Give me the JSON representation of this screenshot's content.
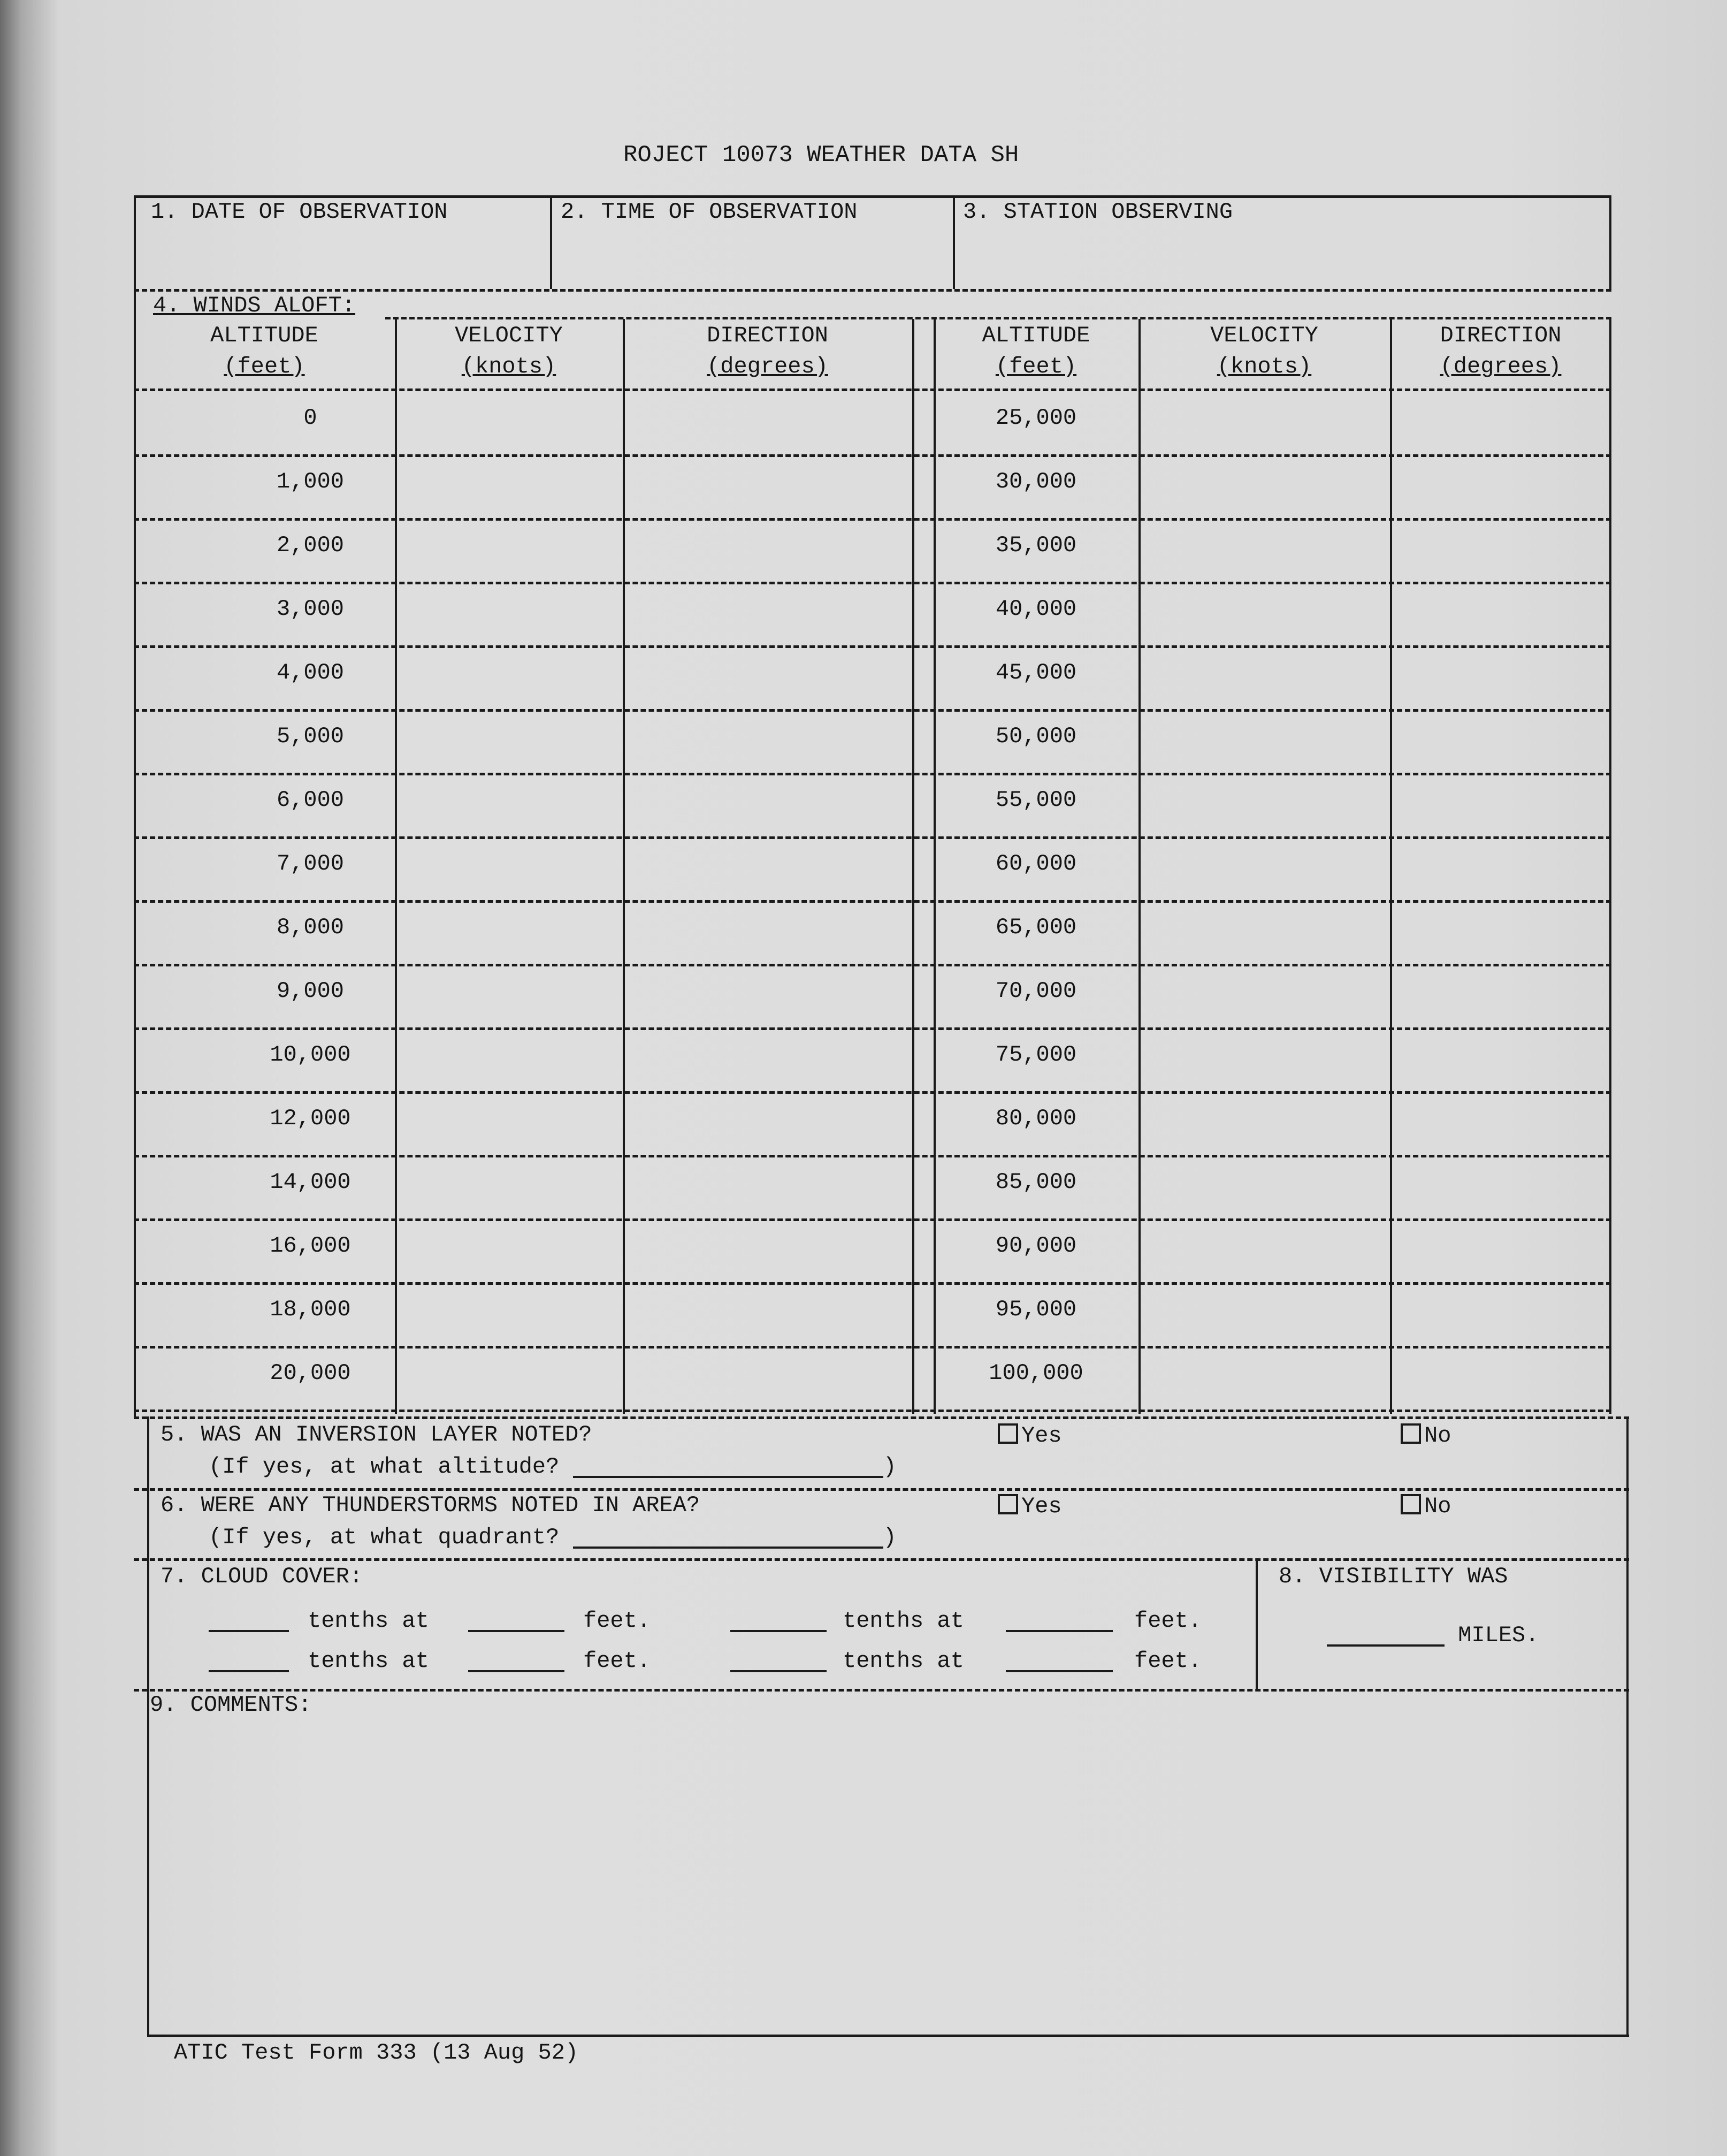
{
  "title": "ROJECT 10073 WEATHER DATA SH",
  "header": {
    "date_label": "1. DATE OF OBSERVATION",
    "time_label": "2. TIME OF OBSERVATION",
    "station_label": "3. STATION OBSERVING"
  },
  "winds_aloft": {
    "label": "4. WINDS ALOFT:",
    "columns": [
      {
        "line1": "ALTITUDE",
        "line2": "(feet)"
      },
      {
        "line1": "VELOCITY",
        "line2": "(knots)"
      },
      {
        "line1": "DIRECTION",
        "line2": "(degrees)"
      },
      {
        "line1": "ALTITUDE",
        "line2": "(feet)"
      },
      {
        "line1": "VELOCITY",
        "line2": "(knots)"
      },
      {
        "line1": "DIRECTION",
        "line2": "(degrees)"
      }
    ],
    "left_altitudes": [
      "0",
      "1,000",
      "2,000",
      "3,000",
      "4,000",
      "5,000",
      "6,000",
      "7,000",
      "8,000",
      "9,000",
      "10,000",
      "12,000",
      "14,000",
      "16,000",
      "18,000",
      "20,000"
    ],
    "right_altitudes": [
      "25,000",
      "30,000",
      "35,000",
      "40,000",
      "45,000",
      "50,000",
      "55,000",
      "60,000",
      "65,000",
      "70,000",
      "75,000",
      "80,000",
      "85,000",
      "90,000",
      "95,000",
      "100,000"
    ]
  },
  "inversion": {
    "question": "5. WAS AN INVERSION LAYER NOTED?",
    "followup": "(If yes, at what altitude?",
    "close": ")",
    "yes": "Yes",
    "no": "No"
  },
  "thunderstorms": {
    "question": "6. WERE ANY THUNDERSTORMS NOTED IN AREA?",
    "followup": "(If yes, at what quadrant?",
    "close": ")",
    "yes": "Yes",
    "no": "No"
  },
  "cloud_cover": {
    "label": "7. CLOUD COVER:",
    "tenths_at": "tenths at",
    "feet": "feet."
  },
  "visibility": {
    "label": "8. VISIBILITY WAS",
    "unit": "MILES."
  },
  "comments": {
    "label": "9. COMMENTS:"
  },
  "footer": "ATIC Test Form 333 (13 Aug 52)"
}
